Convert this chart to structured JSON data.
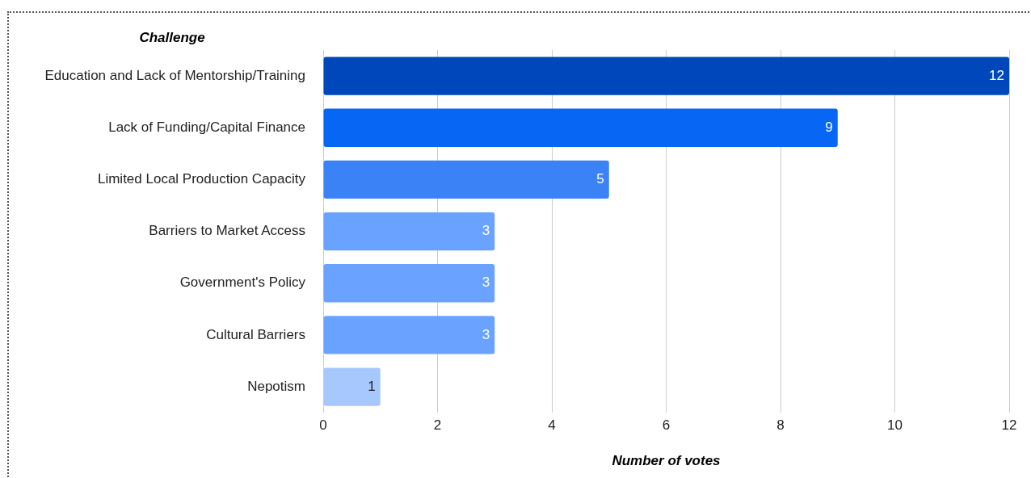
{
  "chart_data": {
    "type": "bar",
    "orientation": "horizontal",
    "ylabel": "Challenge",
    "xlabel": "Number of votes",
    "categories": [
      "Education and Lack of Mentorship/Training",
      "Lack of Funding/Capital Finance",
      "Limited Local Production Capacity",
      "Barriers to Market Access",
      "Government's Policy",
      "Cultural Barriers",
      "Nepotism"
    ],
    "values": [
      12,
      9,
      5,
      3,
      3,
      3,
      1
    ],
    "colors": [
      "#0047bb",
      "#0866f5",
      "#3b82f6",
      "#6aa3ff",
      "#6aa3ff",
      "#6aa3ff",
      "#a7c8ff"
    ],
    "xlim": [
      0,
      12
    ],
    "xticks": [
      0,
      2,
      4,
      6,
      8,
      10,
      12
    ],
    "grid": "x",
    "data_labels": true,
    "legend": false
  }
}
